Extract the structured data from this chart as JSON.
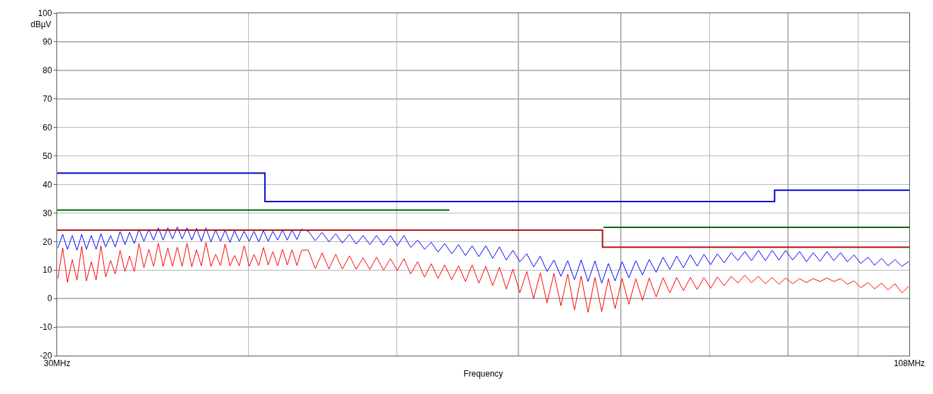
{
  "chart_data": {
    "type": "line",
    "xlabel": "Frequency",
    "ylabel": "dBµV",
    "log": "x",
    "grid": true,
    "marker": "none",
    "line_style": "solid",
    "xlim": [
      30,
      108
    ],
    "xticks": [
      {
        "value": 30,
        "label": "30MHz"
      },
      {
        "value": 40,
        "label": null
      },
      {
        "value": 50,
        "label": null
      },
      {
        "value": 60,
        "label": null
      },
      {
        "value": 70,
        "label": null
      },
      {
        "value": 80,
        "label": null
      },
      {
        "value": 90,
        "label": null
      },
      {
        "value": 100,
        "label": null
      },
      {
        "value": 108,
        "label": "108MHz"
      }
    ],
    "ylim": [
      -20,
      100
    ],
    "yticks": [
      -20,
      -10,
      0,
      10,
      20,
      30,
      40,
      50,
      60,
      70,
      80,
      90,
      100
    ],
    "series": [
      {
        "color": "#0000ff",
        "x": [
          30.03,
          30.25,
          30.47,
          30.69,
          30.91,
          31.13,
          31.35,
          31.58,
          31.81,
          32.04,
          32.27,
          32.51,
          32.74,
          32.98,
          33.22,
          33.45,
          33.69,
          33.93,
          34.18,
          34.43,
          34.68,
          34.93,
          35.18,
          35.43,
          35.68,
          35.94,
          36.2,
          36.47,
          36.73,
          36.99,
          37.26,
          37.52,
          37.8,
          38.07,
          38.35,
          38.62,
          38.9,
          39.17,
          39.45,
          39.74,
          40.04,
          40.33,
          40.62,
          40.91,
          41.2,
          41.49,
          41.79,
          42.1,
          42.4,
          42.71,
          43.02,
          43.32,
          43.76,
          44.22,
          44.68,
          45.14,
          45.6,
          46.06,
          46.55,
          47.03,
          47.52,
          48,
          48.49,
          49,
          49.51,
          50.02,
          50.53,
          51.04,
          51.58,
          52.11,
          52.65,
          53.18,
          53.72,
          54.29,
          54.85,
          55.42,
          55.98,
          56.55,
          57.14,
          57.74,
          58.33,
          58.93,
          59.52,
          60.15,
          60.77,
          61.4,
          62.02,
          62.65,
          63.31,
          63.97,
          64.63,
          65.29,
          65.95,
          66.64,
          67.33,
          68.02,
          68.71,
          69.4,
          70.13,
          70.86,
          71.59,
          72.32,
          73.05,
          73.82,
          74.59,
          75.36,
          76.13,
          76.9,
          77.71,
          78.51,
          79.32,
          80.12,
          80.93,
          81.78,
          82.63,
          83.48,
          84.34,
          85.19,
          86.09,
          86.99,
          87.89,
          88.78,
          89.68,
          90.63,
          91.58,
          92.53,
          93.48,
          94.43,
          95.42,
          96.42,
          97.41,
          98.4,
          99.39,
          100.4,
          101.5,
          102.5,
          103.6,
          104.6,
          105.7,
          106.8,
          107.9
        ],
        "values": [
          17.7,
          22.5,
          17.3,
          22.1,
          16.9,
          22.5,
          17.3,
          22.1,
          17.3,
          22.7,
          18.1,
          22.1,
          18.1,
          23.5,
          18.9,
          23.2,
          19.3,
          24.3,
          20.1,
          24.3,
          20.5,
          24.8,
          20.5,
          24.8,
          20.9,
          25.1,
          20.9,
          24.8,
          20.5,
          24.6,
          20.1,
          24.8,
          19.9,
          24,
          20.1,
          24,
          19.7,
          23.8,
          20.1,
          23.6,
          20.1,
          23.6,
          19.9,
          23.8,
          20.1,
          23.6,
          20.5,
          24,
          20.5,
          24,
          20.7,
          24.3,
          23.6,
          20.3,
          23.2,
          19.9,
          22.7,
          19.5,
          22.5,
          19.1,
          22.1,
          18.9,
          22.1,
          18.7,
          22.1,
          18.5,
          22.1,
          17.9,
          20.5,
          17.3,
          19.7,
          16.3,
          19.3,
          15.7,
          18.9,
          15.1,
          18.5,
          14.7,
          18.5,
          14.1,
          18.1,
          13.5,
          16.9,
          12.9,
          15.7,
          11.1,
          14.9,
          9.5,
          13.5,
          7.8,
          13.3,
          6.6,
          13.5,
          6,
          13.2,
          5.4,
          12.3,
          6.2,
          12.9,
          7.3,
          13.3,
          8.3,
          13.7,
          9.2,
          14.5,
          10.2,
          14.9,
          10.8,
          15.3,
          11.4,
          15.5,
          11.9,
          15.7,
          12.5,
          16.1,
          13.3,
          16.5,
          13.3,
          16.9,
          13.3,
          16.9,
          13.5,
          16.9,
          13.5,
          16.5,
          12.9,
          16.1,
          13.1,
          16.5,
          13.3,
          16.1,
          12.9,
          15.3,
          12.3,
          14.5,
          11.7,
          14.1,
          11.5,
          13.7,
          11.3,
          13
        ]
      },
      {
        "color": "#ff0000",
        "x": [
          30.03,
          30.25,
          30.47,
          30.69,
          30.91,
          31.13,
          31.35,
          31.58,
          31.81,
          32.04,
          32.27,
          32.51,
          32.74,
          32.98,
          33.22,
          33.45,
          33.69,
          33.93,
          34.18,
          34.43,
          34.68,
          34.93,
          35.18,
          35.43,
          35.68,
          35.94,
          36.2,
          36.47,
          36.73,
          36.99,
          37.26,
          37.52,
          37.8,
          38.07,
          38.35,
          38.62,
          38.9,
          39.17,
          39.45,
          39.74,
          40.04,
          40.33,
          40.62,
          40.91,
          41.2,
          41.49,
          41.79,
          42.1,
          42.4,
          42.71,
          43.02,
          43.32,
          43.76,
          44.22,
          44.68,
          45.14,
          45.6,
          46.06,
          46.55,
          47.03,
          47.52,
          48,
          48.49,
          49,
          49.51,
          50.02,
          50.53,
          51.04,
          51.58,
          52.11,
          52.65,
          53.18,
          53.72,
          54.29,
          54.85,
          55.42,
          55.98,
          56.55,
          57.14,
          57.74,
          58.33,
          58.93,
          59.52,
          60.15,
          60.77,
          61.4,
          62.02,
          62.65,
          63.31,
          63.97,
          64.63,
          65.29,
          65.95,
          66.64,
          67.33,
          68.02,
          68.71,
          69.4,
          70.13,
          70.86,
          71.59,
          72.32,
          73.05,
          73.82,
          74.59,
          75.36,
          76.13,
          76.9,
          77.71,
          78.51,
          79.32,
          80.12,
          80.93,
          81.78,
          82.63,
          83.48,
          84.34,
          85.19,
          86.09,
          86.99,
          87.89,
          88.78,
          89.68,
          90.63,
          91.58,
          92.53,
          93.48,
          94.43,
          95.42,
          96.42,
          97.41,
          98.4,
          99.39,
          100.4,
          101.5,
          102.5,
          103.6,
          104.6,
          105.7,
          106.8,
          107.9
        ],
        "values": [
          7,
          17.7,
          5.7,
          13.7,
          6.4,
          18.3,
          6.2,
          12.9,
          6.6,
          18.5,
          7.6,
          13.3,
          8.6,
          16.9,
          9.5,
          14.9,
          9.5,
          19.3,
          10.8,
          17.3,
          11.3,
          19.4,
          11.3,
          17.7,
          11.3,
          18.1,
          11.3,
          19.4,
          11.1,
          17.1,
          11.5,
          19.7,
          11.3,
          15.5,
          11.6,
          19.1,
          11.5,
          15.1,
          11.5,
          18.5,
          11.3,
          15.5,
          11.6,
          17.9,
          11.8,
          16.5,
          11.5,
          17.3,
          11.8,
          17.1,
          11.6,
          16.9,
          17,
          10.5,
          16,
          10.4,
          15.5,
          10.3,
          15,
          10.3,
          14.3,
          10.2,
          14.5,
          10,
          14,
          9.8,
          14,
          8.6,
          13,
          7.5,
          12.2,
          7,
          11.8,
          6.6,
          11.5,
          6,
          11.8,
          5.4,
          11.3,
          4.6,
          11,
          3.3,
          10.3,
          2,
          9.5,
          0,
          9,
          -1.5,
          8.8,
          -2.5,
          8.6,
          -4,
          7.8,
          -4.8,
          7.4,
          -4.6,
          7,
          -3.5,
          7,
          -2,
          7,
          -0.6,
          7.2,
          0.6,
          7.3,
          2,
          7.4,
          2.8,
          7.4,
          3.2,
          7.4,
          3.6,
          7.6,
          4.5,
          7.8,
          5.5,
          8.2,
          5.6,
          7.8,
          5.2,
          7.4,
          5,
          7.2,
          5.2,
          7,
          5.6,
          7,
          6,
          7.2,
          6,
          7,
          5,
          6.2,
          3.8,
          5.6,
          3.4,
          5.4,
          3,
          5.2,
          2,
          4.3
        ]
      },
      {
        "type": "step",
        "color": "#0000cc",
        "x": [
          30,
          41,
          88.2,
          108
        ],
        "values": [
          44,
          34,
          38,
          38
        ]
      },
      {
        "type": "step",
        "color": "#006400",
        "x": [
          30,
          54.1
        ],
        "values": [
          31,
          31
        ]
      },
      {
        "type": "step",
        "color": "#006400",
        "x": [
          68.2,
          108
        ],
        "values": [
          25,
          25
        ]
      },
      {
        "type": "step",
        "color": "#b01010",
        "x": [
          30,
          68.1,
          108
        ],
        "values": [
          24,
          18,
          18
        ]
      }
    ]
  }
}
